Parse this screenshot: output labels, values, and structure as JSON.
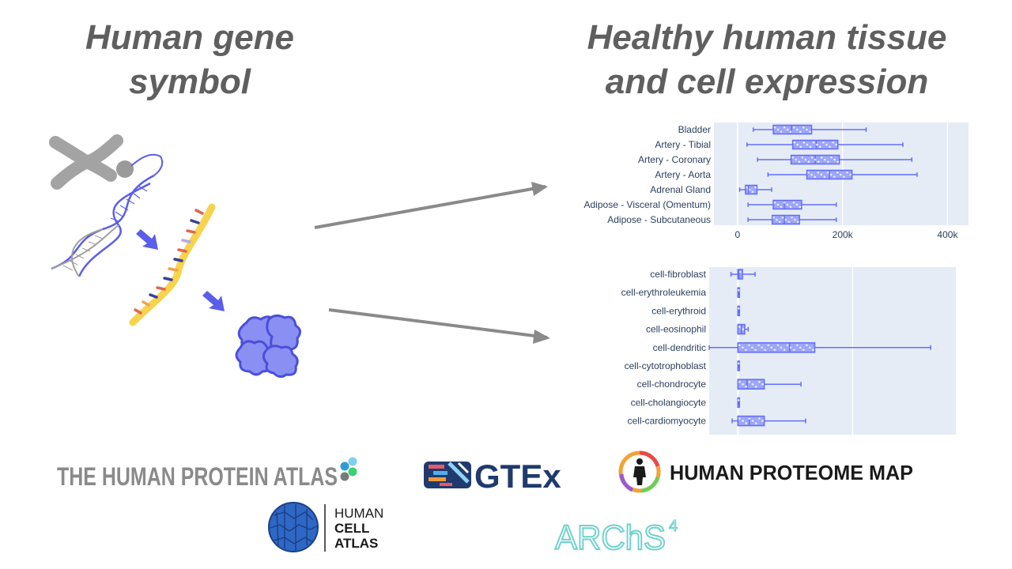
{
  "headings": {
    "left": [
      "Human gene",
      "symbol"
    ],
    "right": [
      "Healthy human tissue",
      "and cell expression"
    ]
  },
  "colors": {
    "heading": "#5f5f5f",
    "plot_bg": "#e5ecf6",
    "box": "#636efa",
    "arrow": "#8a8a8a"
  },
  "icons": [
    "chromosome-icon",
    "dna-helix-icon",
    "mrna-strand-icon",
    "protein-icon"
  ],
  "chart_data": [
    {
      "type": "box",
      "orientation": "horizontal",
      "categories": [
        "Bladder",
        "Artery - Tibial",
        "Artery - Coronary",
        "Artery - Aorta",
        "Adrenal Gland",
        "Adipose - Visceral (Omentum)",
        "Adipose - Subcutaneous"
      ],
      "x_ticks": [
        {
          "value": 0,
          "label": "0"
        },
        {
          "value": 200000,
          "label": "200k"
        },
        {
          "value": 400000,
          "label": "400k"
        }
      ],
      "xlim": [
        -45000,
        440000
      ],
      "boxes": [
        {
          "min": 30000,
          "q1": 68000,
          "median": 103000,
          "q3": 141000,
          "max": 245000
        },
        {
          "min": 18000,
          "q1": 105000,
          "median": 150000,
          "q3": 191000,
          "max": 315000
        },
        {
          "min": 38000,
          "q1": 102000,
          "median": 148000,
          "q3": 194000,
          "max": 332000
        },
        {
          "min": 58000,
          "q1": 132000,
          "median": 175000,
          "q3": 218000,
          "max": 342000
        },
        {
          "min": 4000,
          "q1": 15000,
          "median": 21000,
          "q3": 37000,
          "max": 65000
        },
        {
          "min": 20000,
          "q1": 68000,
          "median": 89000,
          "q3": 122000,
          "max": 188000
        },
        {
          "min": 20000,
          "q1": 66000,
          "median": 89000,
          "q3": 118000,
          "max": 188000
        }
      ]
    },
    {
      "type": "box",
      "orientation": "horizontal",
      "categories": [
        "cell-fibroblast",
        "cell-erythroleukemia",
        "cell-erythroid",
        "cell-eosinophil",
        "cell-dendritic",
        "cell-cytotrophoblast",
        "cell-chondrocyte",
        "cell-cholangiocyte",
        "cell-cardiomyocyte"
      ],
      "xlim": [
        -2.5,
        19
      ],
      "boxes": [
        {
          "min": -0.6,
          "q1": 0,
          "median": 0.1,
          "q3": 0.4,
          "max": 1.5
        },
        {
          "min": 0,
          "q1": 0,
          "median": 0,
          "q3": 0.1,
          "max": 0.1
        },
        {
          "min": 0,
          "q1": 0,
          "median": 0,
          "q3": 0.1,
          "max": 0.1
        },
        {
          "min": 0,
          "q1": 0,
          "median": 0.3,
          "q3": 0.6,
          "max": 0.9
        },
        {
          "min": -2.5,
          "q1": 0,
          "median": 4.5,
          "q3": 6.7,
          "max": 16.8
        },
        {
          "min": 0,
          "q1": 0,
          "median": 0,
          "q3": 0.1,
          "max": 0.1
        },
        {
          "min": 0,
          "q1": 0,
          "median": 0.8,
          "q3": 2.3,
          "max": 5.5
        },
        {
          "min": 0,
          "q1": 0,
          "median": 0,
          "q3": 0.1,
          "max": 0.1
        },
        {
          "min": -0.5,
          "q1": 0,
          "median": 1.0,
          "q3": 2.3,
          "max": 5.9
        }
      ]
    }
  ],
  "logos": {
    "hpa": "THE HUMAN PROTEIN ATLAS",
    "gtex": "GTEx",
    "hpm": "HUMAN PROTEOME MAP",
    "hca": [
      "HUMAN",
      "CELL",
      "ATLAS"
    ],
    "archs4": "ARChS",
    "archs4_sup": "4"
  }
}
